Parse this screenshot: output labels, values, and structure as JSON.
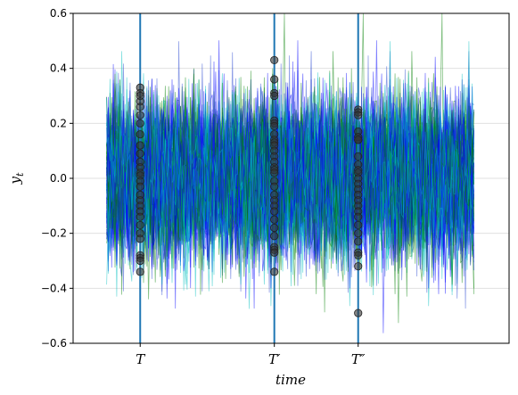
{
  "chart_data": {
    "type": "line",
    "title": "",
    "xlabel": "time",
    "ylabel": "y",
    "ylabel_subscript": "t",
    "ylim": [
      -0.6,
      0.6
    ],
    "yticks": [
      -0.6,
      -0.4,
      -0.2,
      0.0,
      0.2,
      0.4,
      0.6
    ],
    "ytick_labels": [
      "−0.6",
      "−0.4",
      "−0.2",
      "0.0",
      "0.2",
      "0.4",
      "0.6"
    ],
    "xlim": [
      -20,
      240
    ],
    "grid": "horizontal",
    "legend": "none",
    "series_count": 80,
    "series_length": 220,
    "noise_std": 0.14,
    "series_colors": [
      "#0000ff",
      "#008000",
      "#00bfbf",
      "#1f3fd0"
    ],
    "vline_color": "#1f77b4",
    "marker_color": "#333333",
    "vertical_markers": [
      {
        "label": "T",
        "x": 20,
        "values": [
          0.33,
          0.31,
          0.3,
          0.28,
          0.26,
          0.23,
          0.2,
          0.16,
          0.12,
          0.09,
          0.06,
          0.04,
          0.02,
          0.01,
          -0.01,
          -0.03,
          -0.06,
          -0.08,
          -0.1,
          -0.12,
          -0.14,
          -0.17,
          -0.2,
          -0.22,
          -0.28,
          -0.29,
          -0.3,
          -0.34
        ]
      },
      {
        "label": "T′",
        "x": 100,
        "values": [
          0.43,
          0.36,
          0.31,
          0.3,
          0.21,
          0.2,
          0.19,
          0.16,
          0.14,
          0.13,
          0.12,
          0.1,
          0.08,
          0.06,
          0.04,
          0.03,
          0.02,
          -0.01,
          -0.03,
          -0.06,
          -0.08,
          -0.1,
          -0.12,
          -0.15,
          -0.18,
          -0.21,
          -0.25,
          -0.26,
          -0.27,
          -0.34
        ]
      },
      {
        "label": "T″",
        "x": 150,
        "values": [
          0.25,
          0.24,
          0.23,
          0.17,
          0.15,
          0.14,
          0.14,
          0.08,
          0.05,
          0.03,
          0.02,
          0.0,
          -0.02,
          -0.04,
          -0.06,
          -0.08,
          -0.1,
          -0.12,
          -0.14,
          -0.17,
          -0.2,
          -0.23,
          -0.27,
          -0.28,
          -0.32,
          -0.49
        ]
      }
    ]
  }
}
